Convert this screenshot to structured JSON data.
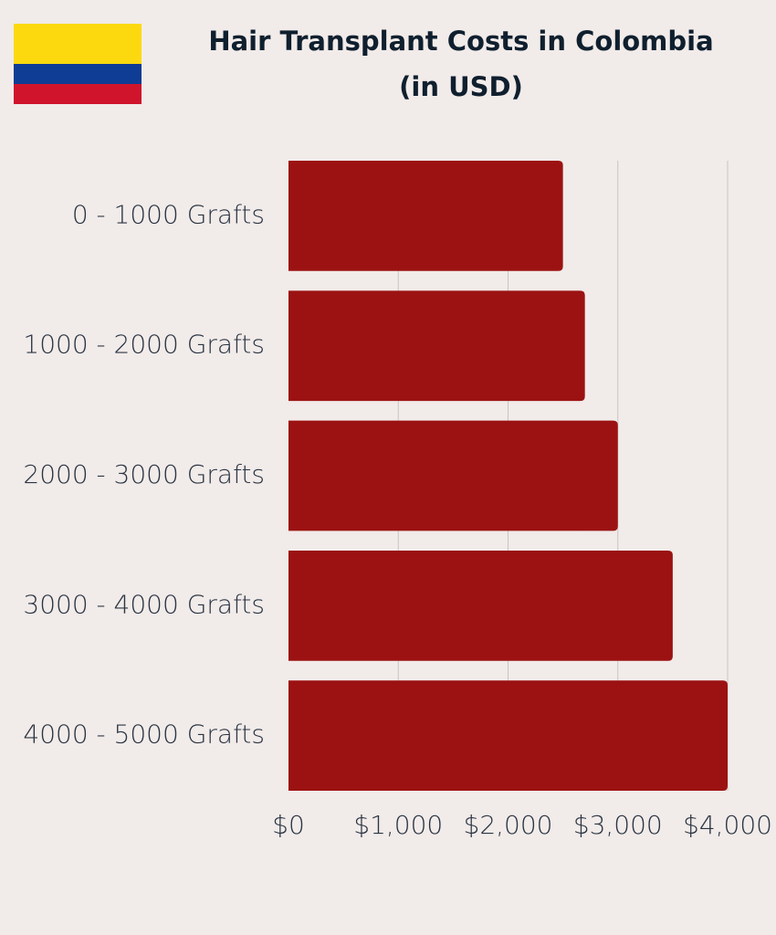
{
  "chart_data": {
    "type": "bar",
    "orientation": "horizontal",
    "title": "Hair Transplant Costs in Colombia",
    "subtitle": "(in USD)",
    "categories": [
      "0 - 1000 Grafts",
      "1000 - 2000 Grafts",
      "2000 - 3000 Grafts",
      "3000 - 4000 Grafts",
      "4000 - 5000 Grafts"
    ],
    "values": [
      2500,
      2700,
      3000,
      3500,
      4000
    ],
    "color": "#9c1212",
    "xlim": [
      0,
      4000
    ],
    "xticks": [
      {
        "value": 0,
        "label": "$0"
      },
      {
        "value": 1000,
        "label": "$1,000"
      },
      {
        "value": 2000,
        "label": "$2,000"
      },
      {
        "value": 3000,
        "label": "$3,000"
      },
      {
        "value": 4000,
        "label": "$4,000"
      }
    ],
    "grid": true
  }
}
